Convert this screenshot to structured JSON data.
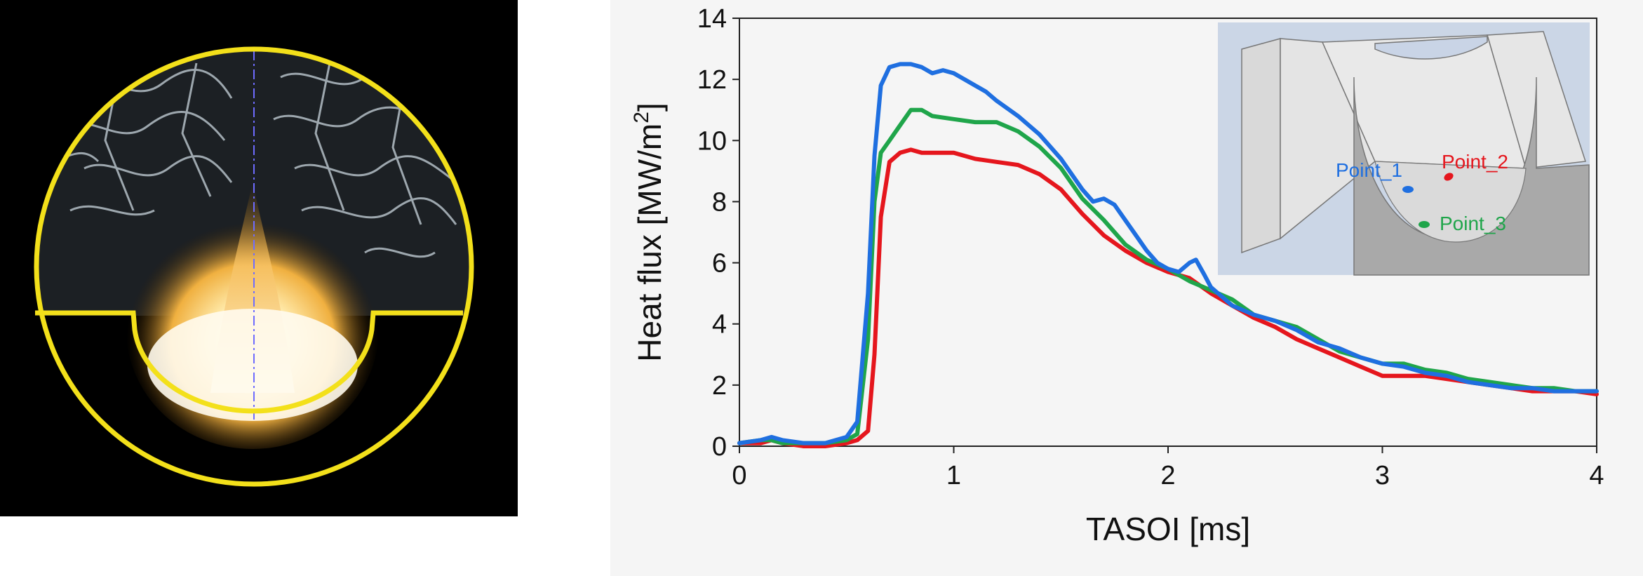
{
  "colors": {
    "series_blue": "#1f6fe0",
    "series_green": "#1fa54a",
    "series_red": "#e5161d",
    "overlay_yellow": "#f3e01a",
    "photo_background": "#000000",
    "chart_background": "#f5f5f5"
  },
  "photo": {
    "description_icon": "flame-in-bowl-photo-icon"
  },
  "chart_data": {
    "type": "line",
    "xlabel": "TASOI [ms]",
    "ylabel_main": "Heat flux [MW/m",
    "ylabel_sup": "2",
    "ylabel_close": "]",
    "xlim": [
      0,
      4
    ],
    "ylim": [
      0,
      14
    ],
    "x_ticks": [
      "0",
      "1",
      "2",
      "3",
      "4"
    ],
    "y_ticks": [
      "0",
      "2",
      "4",
      "6",
      "8",
      "10",
      "12",
      "14"
    ],
    "grid": false,
    "series": [
      {
        "name": "Point_1",
        "color": "#1f6fe0",
        "x": [
          0,
          0.1,
          0.15,
          0.2,
          0.3,
          0.4,
          0.5,
          0.55,
          0.6,
          0.63,
          0.66,
          0.7,
          0.75,
          0.8,
          0.85,
          0.9,
          0.95,
          1.0,
          1.05,
          1.1,
          1.15,
          1.2,
          1.3,
          1.4,
          1.5,
          1.6,
          1.65,
          1.7,
          1.75,
          1.8,
          1.85,
          1.9,
          1.95,
          2.0,
          2.05,
          2.1,
          2.13,
          2.17,
          2.2,
          2.3,
          2.4,
          2.5,
          2.6,
          2.7,
          2.8,
          2.9,
          3.0,
          3.1,
          3.2,
          3.3,
          3.4,
          3.5,
          3.6,
          3.7,
          3.8,
          3.9,
          4.0
        ],
        "y": [
          0.1,
          0.2,
          0.3,
          0.2,
          0.1,
          0.1,
          0.3,
          0.8,
          5.0,
          9.5,
          11.8,
          12.4,
          12.5,
          12.5,
          12.4,
          12.2,
          12.3,
          12.2,
          12.0,
          11.8,
          11.6,
          11.3,
          10.8,
          10.2,
          9.4,
          8.4,
          8.0,
          8.1,
          7.9,
          7.4,
          6.9,
          6.4,
          6.0,
          5.8,
          5.7,
          6.0,
          6.1,
          5.6,
          5.2,
          4.6,
          4.3,
          4.1,
          3.8,
          3.4,
          3.2,
          2.9,
          2.7,
          2.6,
          2.4,
          2.3,
          2.1,
          2.0,
          1.9,
          1.9,
          1.8,
          1.8,
          1.8
        ]
      },
      {
        "name": "Point_2",
        "color": "#e5161d",
        "x": [
          0,
          0.1,
          0.15,
          0.2,
          0.3,
          0.4,
          0.5,
          0.55,
          0.6,
          0.63,
          0.66,
          0.7,
          0.75,
          0.8,
          0.85,
          0.9,
          1.0,
          1.1,
          1.2,
          1.3,
          1.4,
          1.5,
          1.6,
          1.7,
          1.8,
          1.9,
          2.0,
          2.1,
          2.2,
          2.3,
          2.4,
          2.5,
          2.6,
          2.7,
          2.8,
          2.9,
          3.0,
          3.1,
          3.2,
          3.3,
          3.4,
          3.5,
          3.6,
          3.7,
          3.8,
          3.9,
          4.0
        ],
        "y": [
          0.1,
          0.1,
          0.2,
          0.1,
          0.0,
          0.0,
          0.1,
          0.2,
          0.5,
          3.0,
          7.5,
          9.3,
          9.6,
          9.7,
          9.6,
          9.6,
          9.6,
          9.4,
          9.3,
          9.2,
          8.9,
          8.4,
          7.6,
          6.9,
          6.4,
          6.0,
          5.7,
          5.5,
          5.0,
          4.6,
          4.2,
          3.9,
          3.5,
          3.2,
          2.9,
          2.6,
          2.3,
          2.3,
          2.3,
          2.2,
          2.1,
          2.0,
          1.9,
          1.8,
          1.8,
          1.8,
          1.7
        ]
      },
      {
        "name": "Point_3",
        "color": "#1fa54a",
        "x": [
          0,
          0.1,
          0.15,
          0.2,
          0.3,
          0.4,
          0.5,
          0.55,
          0.6,
          0.63,
          0.66,
          0.7,
          0.75,
          0.8,
          0.85,
          0.9,
          1.0,
          1.1,
          1.2,
          1.3,
          1.4,
          1.5,
          1.6,
          1.7,
          1.8,
          1.9,
          2.0,
          2.1,
          2.2,
          2.3,
          2.4,
          2.5,
          2.6,
          2.7,
          2.8,
          2.9,
          3.0,
          3.1,
          3.2,
          3.3,
          3.4,
          3.5,
          3.6,
          3.7,
          3.8,
          3.9,
          4.0
        ],
        "y": [
          0.1,
          0.2,
          0.2,
          0.1,
          0.1,
          0.1,
          0.2,
          0.4,
          3.5,
          8.0,
          9.6,
          10.0,
          10.5,
          11.0,
          11.0,
          10.8,
          10.7,
          10.6,
          10.6,
          10.3,
          9.8,
          9.1,
          8.1,
          7.4,
          6.6,
          6.1,
          5.8,
          5.4,
          5.1,
          4.8,
          4.3,
          4.1,
          3.9,
          3.5,
          3.1,
          2.9,
          2.7,
          2.7,
          2.5,
          2.4,
          2.2,
          2.1,
          2.0,
          1.9,
          1.9,
          1.8,
          1.8
        ]
      }
    ],
    "inset": {
      "labels": [
        "Point_1",
        "Point_2",
        "Point_3"
      ]
    }
  }
}
